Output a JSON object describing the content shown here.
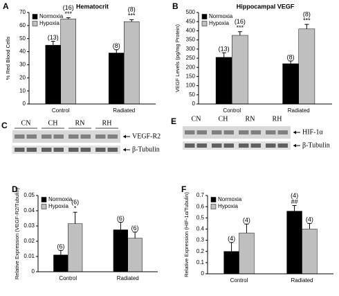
{
  "chart_data": [
    {
      "type": "bar",
      "panel": "A",
      "title": "Hematocrit",
      "ylabel": "% Red Blood Cells",
      "categories": [
        "Control",
        "Radiated"
      ],
      "ylim": [
        0,
        70
      ],
      "yticks": [
        0,
        10,
        20,
        30,
        40,
        50,
        60,
        70
      ],
      "series": [
        {
          "name": "Normoxia",
          "color": "#000000",
          "values": [
            45,
            39
          ],
          "errors": [
            3,
            2.5
          ],
          "annotations": [
            [
              "(13)"
            ],
            [
              "(8)"
            ]
          ]
        },
        {
          "name": "Hypoxia",
          "color": "#bfbfbf",
          "values": [
            65,
            63
          ],
          "errors": [
            1,
            1.5
          ],
          "annotations": [
            [
              "(16)",
              "***"
            ],
            [
              "(8)",
              "***"
            ]
          ]
        }
      ]
    },
    {
      "type": "bar",
      "panel": "B",
      "title": "Hippocampal VEGF",
      "ylabel": "VEGF Levels (pg/mg Protein)",
      "categories": [
        "Control",
        "Radiated"
      ],
      "ylim": [
        0,
        500
      ],
      "yticks": [
        0,
        50,
        100,
        150,
        200,
        250,
        300,
        350,
        400,
        450,
        500
      ],
      "series": [
        {
          "name": "Normoxia",
          "color": "#000000",
          "values": [
            255,
            220
          ],
          "errors": [
            25,
            15
          ],
          "annotations": [
            [
              "(13)"
            ],
            [
              "(8)"
            ]
          ]
        },
        {
          "name": "Hypoxia",
          "color": "#bfbfbf",
          "values": [
            375,
            410
          ],
          "errors": [
            20,
            25
          ],
          "annotations": [
            [
              "(16)",
              "***"
            ],
            [
              "(8)",
              "***"
            ]
          ]
        }
      ]
    },
    {
      "type": "bar",
      "panel": "D",
      "ylabel": "Relative Expression (VEGF-R2/Tubulin)",
      "categories": [
        "Control",
        "Radiated"
      ],
      "ylim": [
        0,
        0.05
      ],
      "yticks": [
        0,
        0.01,
        0.02,
        0.03,
        0.04,
        0.05
      ],
      "series": [
        {
          "name": "Normoxia",
          "color": "#000000",
          "values": [
            0.011,
            0.0275
          ],
          "errors": [
            0.003,
            0.005
          ],
          "annotations": [
            [
              "(6)"
            ],
            [
              "(6)"
            ]
          ]
        },
        {
          "name": "Hypoxia",
          "color": "#bfbfbf",
          "values": [
            0.0315,
            0.022
          ],
          "errors": [
            0.0075,
            0.004
          ],
          "annotations": [
            [
              "(6)",
              "*"
            ],
            [
              "(6)"
            ]
          ]
        }
      ]
    },
    {
      "type": "bar",
      "panel": "F",
      "ylabel": "Relative Expression (HIF-1α/Tubulin)",
      "categories": [
        "Control",
        "Radiated"
      ],
      "ylim": [
        0,
        0.7
      ],
      "yticks": [
        0,
        0.1,
        0.2,
        0.3,
        0.4,
        0.5,
        0.6,
        0.7
      ],
      "series": [
        {
          "name": "Normoxia",
          "color": "#000000",
          "values": [
            0.2,
            0.56
          ],
          "errors": [
            0.08,
            0.05
          ],
          "annotations": [
            [
              "(4)"
            ],
            [
              "(4)",
              "##"
            ]
          ]
        },
        {
          "name": "Hypoxia",
          "color": "#bfbfbf",
          "values": [
            0.365,
            0.4
          ],
          "errors": [
            0.08,
            0.05
          ],
          "annotations": [
            [
              "(4)"
            ],
            [
              "(4)"
            ]
          ]
        }
      ]
    }
  ],
  "blots": [
    {
      "panel": "C",
      "lanes": [
        "CN",
        "CH",
        "RN",
        "RH"
      ],
      "rows": [
        "VEGF-R2",
        "β-Tubulin"
      ]
    },
    {
      "panel": "E",
      "lanes": [
        "CN",
        "CH",
        "RN",
        "RH"
      ],
      "rows": [
        "HIF-1α",
        "β-Tubulin"
      ]
    }
  ]
}
